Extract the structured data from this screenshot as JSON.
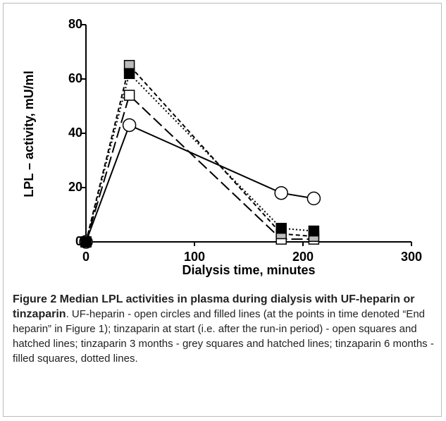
{
  "chart_data": {
    "type": "line",
    "ylabel": "LPL – activity, mU/ml",
    "xlabel": "Dialysis time, minutes",
    "xlim": [
      0,
      300
    ],
    "xticks": [
      0,
      100,
      200,
      300
    ],
    "ylim": [
      0,
      80
    ],
    "yticks": [
      0,
      20,
      40,
      60,
      80
    ],
    "series": [
      {
        "x": [
          0,
          40,
          180,
          210
        ],
        "values": [
          0,
          43,
          18,
          16
        ],
        "marker": "circle",
        "marker_fill": "#ffffff",
        "line": "solid",
        "color": "#000000"
      },
      {
        "x": [
          0,
          40,
          180,
          210
        ],
        "values": [
          0,
          54,
          1,
          1
        ],
        "marker": "square",
        "marker_fill": "#ffffff",
        "line": "dashed",
        "color": "#000000"
      },
      {
        "x": [
          0,
          40,
          180,
          210
        ],
        "values": [
          0,
          65,
          3,
          2
        ],
        "marker": "square",
        "marker_fill": "#bbbbbb",
        "line": "dashed",
        "color": "#000000"
      },
      {
        "x": [
          0,
          40,
          180,
          210
        ],
        "values": [
          0,
          62,
          5,
          4
        ],
        "marker": "square",
        "marker_fill": "#000000",
        "line": "dotted",
        "color": "#000000"
      }
    ]
  },
  "caption": {
    "title": "Figure 2 Median LPL activities in plasma during dialysis with UF-heparin or tinzaparin",
    "text": ". UF-heparin - open circles and filled lines (at the points in time denoted “End heparin” in Figure 1); tinzaparin at start (i.e. after the run-in period) - open squares and hatched lines; tinzaparin 3 months - grey squares and hatched lines; tinzaparin 6 months - filled squares, dotted lines."
  }
}
